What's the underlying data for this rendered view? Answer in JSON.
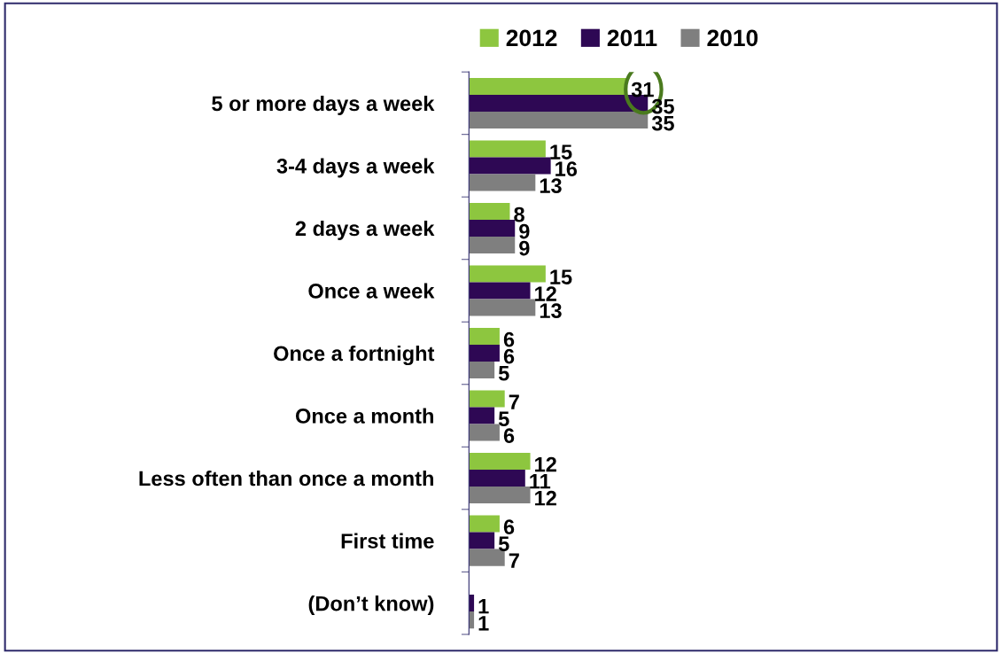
{
  "chart_data": {
    "type": "bar",
    "orientation": "horizontal",
    "categories": [
      "5 or more days a week",
      "3-4 days a week",
      "2 days a week",
      "Once a week",
      "Once a fortnight",
      "Once a month",
      "Less often than once a month",
      "First time",
      "(Don’t know)"
    ],
    "series": [
      {
        "name": "2012",
        "color": "#8dc63f",
        "values": [
          31,
          15,
          8,
          15,
          6,
          7,
          12,
          6,
          null
        ]
      },
      {
        "name": "2011",
        "color": "#2e0854",
        "values": [
          35,
          16,
          9,
          12,
          6,
          5,
          11,
          5,
          1
        ]
      },
      {
        "name": "2010",
        "color": "#7f7f7f",
        "values": [
          35,
          13,
          9,
          13,
          5,
          6,
          12,
          7,
          1
        ]
      }
    ],
    "data_labels": true,
    "legend": "top",
    "grid": false,
    "tick_labels": "y"
  }
}
